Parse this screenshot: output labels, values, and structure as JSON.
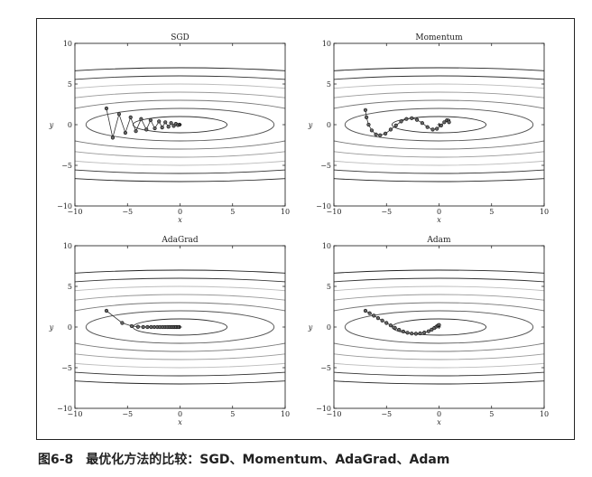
{
  "figure": {
    "caption_number": "图6-8",
    "caption_text": "最优化方法的比较：SGD、Momentum、AdaGrad、Adam"
  },
  "chart_data": [
    {
      "type": "line",
      "title": "SGD",
      "xlabel": "x",
      "ylabel": "y",
      "xlim": [
        -10,
        10
      ],
      "ylim": [
        -10,
        10
      ],
      "xticks": [
        -10,
        -5,
        0,
        5,
        10
      ],
      "yticks": [
        -10,
        -5,
        0,
        5,
        10
      ],
      "xtick_labels": [
        "−10",
        "−5",
        "0",
        "5",
        "10"
      ],
      "ytick_labels": [
        "−10",
        "−5",
        "0",
        "5",
        "10"
      ],
      "contour_levels": [
        1,
        4,
        9,
        16,
        25,
        36,
        49
      ],
      "marker": "circle",
      "target_marker": "+",
      "target": [
        0,
        0
      ],
      "path": [
        [
          -7,
          2
        ],
        [
          -6.4,
          -1.6
        ],
        [
          -5.8,
          1.3
        ],
        [
          -5.2,
          -1.0
        ],
        [
          -4.7,
          0.9
        ],
        [
          -4.2,
          -0.8
        ],
        [
          -3.7,
          0.7
        ],
        [
          -3.2,
          -0.6
        ],
        [
          -2.8,
          0.55
        ],
        [
          -2.4,
          -0.45
        ],
        [
          -2.0,
          0.4
        ],
        [
          -1.7,
          -0.35
        ],
        [
          -1.4,
          0.3
        ],
        [
          -1.1,
          -0.25
        ],
        [
          -0.85,
          0.2
        ],
        [
          -0.6,
          -0.15
        ],
        [
          -0.4,
          0.1
        ],
        [
          -0.2,
          -0.05
        ],
        [
          -0.05,
          0.0
        ]
      ]
    },
    {
      "type": "line",
      "title": "Momentum",
      "xlabel": "x",
      "ylabel": "y",
      "xlim": [
        -10,
        10
      ],
      "ylim": [
        -10,
        10
      ],
      "xticks": [
        -10,
        -5,
        0,
        5,
        10
      ],
      "yticks": [
        -10,
        -5,
        0,
        5,
        10
      ],
      "xtick_labels": [
        "−10",
        "−5",
        "0",
        "5",
        "10"
      ],
      "ytick_labels": [
        "−10",
        "−5",
        "0",
        "5",
        "10"
      ],
      "contour_levels": [
        1,
        4,
        9,
        16,
        25,
        36,
        49
      ],
      "marker": "circle",
      "target_marker": "+",
      "target": [
        0,
        0
      ],
      "path": [
        [
          -7,
          1.8
        ],
        [
          -6.9,
          0.9
        ],
        [
          -6.7,
          0.0
        ],
        [
          -6.4,
          -0.7
        ],
        [
          -6.0,
          -1.2
        ],
        [
          -5.6,
          -1.3
        ],
        [
          -5.1,
          -1.1
        ],
        [
          -4.6,
          -0.6
        ],
        [
          -4.1,
          -0.1
        ],
        [
          -3.6,
          0.4
        ],
        [
          -3.1,
          0.7
        ],
        [
          -2.6,
          0.8
        ],
        [
          -2.1,
          0.6
        ],
        [
          -1.6,
          0.2
        ],
        [
          -1.1,
          -0.3
        ],
        [
          -0.6,
          -0.6
        ],
        [
          -0.2,
          -0.5
        ],
        [
          0.2,
          -0.1
        ],
        [
          0.5,
          0.3
        ],
        [
          0.75,
          0.55
        ],
        [
          0.9,
          0.5
        ],
        [
          0.95,
          0.3
        ]
      ]
    },
    {
      "type": "line",
      "title": "AdaGrad",
      "xlabel": "x",
      "ylabel": "y",
      "xlim": [
        -10,
        10
      ],
      "ylim": [
        -10,
        10
      ],
      "xticks": [
        -10,
        -5,
        0,
        5,
        10
      ],
      "yticks": [
        -10,
        -5,
        0,
        5,
        10
      ],
      "xtick_labels": [
        "−10",
        "−5",
        "0",
        "5",
        "10"
      ],
      "ytick_labels": [
        "−10",
        "−5",
        "0",
        "5",
        "10"
      ],
      "contour_levels": [
        1,
        4,
        9,
        16,
        25,
        36,
        49
      ],
      "marker": "circle",
      "target_marker": "+",
      "target": [
        0,
        0
      ],
      "path": [
        [
          -7,
          2
        ],
        [
          -5.5,
          0.5
        ],
        [
          -4.6,
          0.12
        ],
        [
          -4.0,
          0.03
        ],
        [
          -3.5,
          0.0
        ],
        [
          -3.1,
          0.0
        ],
        [
          -2.75,
          0.0
        ],
        [
          -2.45,
          0.0
        ],
        [
          -2.15,
          0.0
        ],
        [
          -1.9,
          0.0
        ],
        [
          -1.65,
          0.0
        ],
        [
          -1.42,
          0.0
        ],
        [
          -1.2,
          0.0
        ],
        [
          -1.0,
          0.0
        ],
        [
          -0.82,
          0.0
        ],
        [
          -0.66,
          0.0
        ],
        [
          -0.5,
          0.0
        ],
        [
          -0.36,
          0.0
        ],
        [
          -0.22,
          0.0
        ],
        [
          -0.1,
          0.0
        ]
      ]
    },
    {
      "type": "line",
      "title": "Adam",
      "xlabel": "x",
      "ylabel": "y",
      "xlim": [
        -10,
        10
      ],
      "ylim": [
        -10,
        10
      ],
      "xticks": [
        -10,
        -5,
        0,
        5,
        10
      ],
      "yticks": [
        -10,
        -5,
        0,
        5,
        10
      ],
      "xtick_labels": [
        "−10",
        "−5",
        "0",
        "5",
        "10"
      ],
      "ytick_labels": [
        "−10",
        "−5",
        "0",
        "5",
        "10"
      ],
      "contour_levels": [
        1,
        4,
        9,
        16,
        25,
        36,
        49
      ],
      "marker": "circle",
      "target_marker": "+",
      "target": [
        0,
        0
      ],
      "path": [
        [
          -7,
          2
        ],
        [
          -6.6,
          1.7
        ],
        [
          -6.2,
          1.4
        ],
        [
          -5.8,
          1.1
        ],
        [
          -5.4,
          0.8
        ],
        [
          -5.0,
          0.5
        ],
        [
          -4.6,
          0.2
        ],
        [
          -4.2,
          -0.1
        ],
        [
          -3.8,
          -0.35
        ],
        [
          -3.4,
          -0.55
        ],
        [
          -3.0,
          -0.7
        ],
        [
          -2.6,
          -0.8
        ],
        [
          -2.2,
          -0.82
        ],
        [
          -1.8,
          -0.78
        ],
        [
          -1.4,
          -0.68
        ],
        [
          -1.0,
          -0.52
        ],
        [
          -0.7,
          -0.32
        ],
        [
          -0.45,
          -0.12
        ],
        [
          -0.25,
          0.05
        ],
        [
          -0.1,
          0.18
        ],
        [
          0.0,
          0.25
        ]
      ]
    }
  ]
}
